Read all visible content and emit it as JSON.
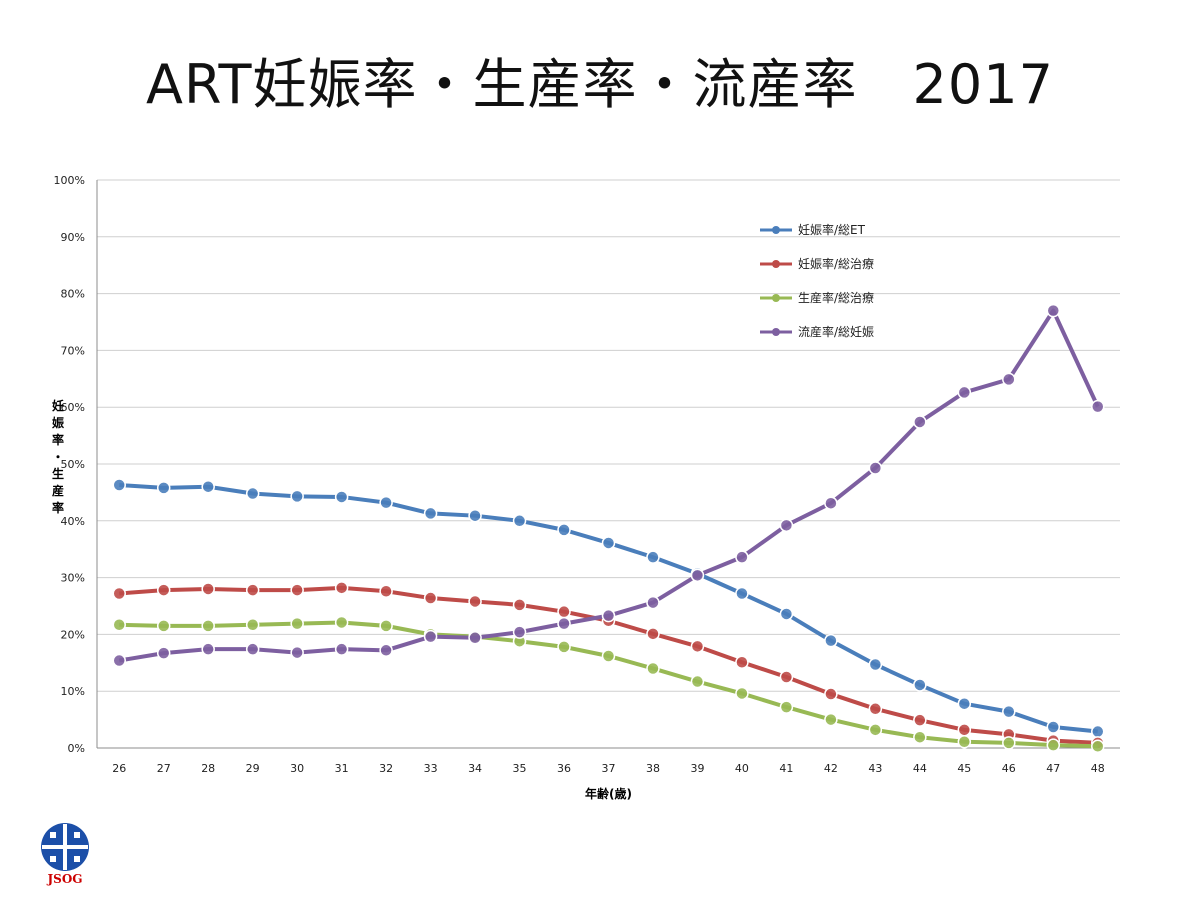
{
  "title": "ART妊娠率・生産率・流産率　2017",
  "logo": {
    "text": "JSOG",
    "icon": "jsog-logo"
  },
  "chart_data": {
    "type": "line",
    "title": "ART妊娠率・生産率・流産率　2017",
    "xlabel": "年齢(歳)",
    "ylabel": "妊娠率・生産率",
    "ylim": [
      0,
      100
    ],
    "y_ticks": [
      "0%",
      "10%",
      "20%",
      "30%",
      "40%",
      "50%",
      "60%",
      "70%",
      "80%",
      "90%",
      "100%"
    ],
    "grid": true,
    "legend_position": "top-right",
    "x": [
      26,
      27,
      28,
      29,
      30,
      31,
      32,
      33,
      34,
      35,
      36,
      37,
      38,
      39,
      40,
      41,
      42,
      43,
      44,
      45,
      46,
      47,
      48
    ],
    "series": [
      {
        "name": "妊娠率/総ET",
        "color": "#4a7ebb",
        "values": [
          46.3,
          45.8,
          46.0,
          44.8,
          44.3,
          44.2,
          43.2,
          41.3,
          40.9,
          40.0,
          38.4,
          36.1,
          33.6,
          30.7,
          27.2,
          23.6,
          18.9,
          14.7,
          11.1,
          7.8,
          6.4,
          3.7,
          2.9
        ]
      },
      {
        "name": "妊娠率/総治療",
        "color": "#be4b48",
        "values": [
          27.2,
          27.8,
          28.0,
          27.8,
          27.8,
          28.2,
          27.6,
          26.4,
          25.8,
          25.2,
          24.0,
          22.4,
          20.1,
          17.9,
          15.1,
          12.5,
          9.5,
          6.9,
          4.9,
          3.2,
          2.4,
          1.3,
          0.9
        ]
      },
      {
        "name": "生産率/総治療",
        "color": "#98b954",
        "values": [
          21.7,
          21.5,
          21.5,
          21.7,
          21.9,
          22.1,
          21.5,
          20.0,
          19.6,
          18.8,
          17.8,
          16.2,
          14.0,
          11.7,
          9.6,
          7.2,
          5.0,
          3.2,
          1.9,
          1.1,
          0.9,
          0.5,
          0.3
        ]
      },
      {
        "name": "流産率/総妊娠",
        "color": "#7d5fa0",
        "values": [
          15.4,
          16.7,
          17.4,
          17.4,
          16.8,
          17.4,
          17.2,
          19.6,
          19.4,
          20.4,
          21.9,
          23.3,
          25.6,
          30.4,
          33.6,
          39.2,
          43.1,
          49.3,
          57.4,
          62.6,
          64.9,
          77.0,
          60.1
        ]
      }
    ]
  }
}
